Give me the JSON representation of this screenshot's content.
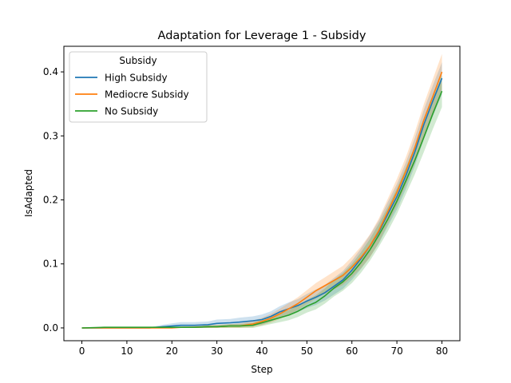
{
  "chart_data": {
    "type": "line",
    "title": "Adaptation for Leverage 1 - Subsidy",
    "xlabel": "Step",
    "ylabel": "IsAdapted",
    "xlim": [
      -4,
      84
    ],
    "ylim": [
      -0.02,
      0.44
    ],
    "xticks": [
      0,
      10,
      20,
      30,
      40,
      50,
      60,
      70,
      80
    ],
    "yticks": [
      0.0,
      0.1,
      0.2,
      0.3,
      0.4
    ],
    "ytick_labels": [
      "0.0",
      "0.1",
      "0.2",
      "0.3",
      "0.4"
    ],
    "grid": false,
    "legend": {
      "title": "Subsidy",
      "placement": "upper-left"
    },
    "x": [
      0,
      5,
      10,
      15,
      18,
      20,
      22,
      25,
      28,
      30,
      33,
      35,
      38,
      40,
      42,
      44,
      46,
      48,
      50,
      52,
      54,
      56,
      58,
      60,
      62,
      64,
      66,
      68,
      70,
      72,
      74,
      76,
      78,
      80
    ],
    "series": [
      {
        "name": "High Subsidy",
        "color": "#1f77b4",
        "values": [
          0.0,
          0.0,
          0.0,
          0.0,
          0.002,
          0.003,
          0.004,
          0.004,
          0.005,
          0.007,
          0.008,
          0.009,
          0.011,
          0.013,
          0.018,
          0.025,
          0.03,
          0.035,
          0.042,
          0.048,
          0.055,
          0.065,
          0.075,
          0.09,
          0.108,
          0.128,
          0.15,
          0.178,
          0.205,
          0.238,
          0.275,
          0.318,
          0.355,
          0.39
        ],
        "band": [
          0.0,
          0.0,
          0.0,
          0.001,
          0.003,
          0.004,
          0.005,
          0.005,
          0.005,
          0.006,
          0.006,
          0.007,
          0.007,
          0.008,
          0.008,
          0.009,
          0.01,
          0.01,
          0.011,
          0.012,
          0.012,
          0.013,
          0.014,
          0.015,
          0.016,
          0.017,
          0.018,
          0.019,
          0.02,
          0.021,
          0.022,
          0.023,
          0.024,
          0.025
        ]
      },
      {
        "name": "Mediocre Subsidy",
        "color": "#ff7f0e",
        "values": [
          0.0,
          0.0,
          0.0,
          0.0,
          0.0,
          0.0,
          0.001,
          0.001,
          0.002,
          0.002,
          0.003,
          0.003,
          0.006,
          0.01,
          0.015,
          0.022,
          0.03,
          0.038,
          0.048,
          0.058,
          0.066,
          0.074,
          0.082,
          0.095,
          0.11,
          0.128,
          0.152,
          0.182,
          0.212,
          0.245,
          0.282,
          0.325,
          0.362,
          0.4
        ],
        "band": [
          0.0,
          0.0,
          0.0,
          0.0,
          0.0,
          0.001,
          0.001,
          0.002,
          0.002,
          0.003,
          0.003,
          0.004,
          0.005,
          0.006,
          0.007,
          0.008,
          0.009,
          0.01,
          0.011,
          0.012,
          0.013,
          0.014,
          0.015,
          0.016,
          0.017,
          0.018,
          0.019,
          0.02,
          0.021,
          0.022,
          0.024,
          0.025,
          0.027,
          0.028
        ]
      },
      {
        "name": "No Subsidy",
        "color": "#2ca02c",
        "values": [
          0.0,
          0.001,
          0.001,
          0.001,
          0.001,
          0.001,
          0.001,
          0.001,
          0.002,
          0.002,
          0.003,
          0.003,
          0.004,
          0.008,
          0.012,
          0.016,
          0.02,
          0.026,
          0.034,
          0.04,
          0.05,
          0.062,
          0.072,
          0.085,
          0.102,
          0.122,
          0.145,
          0.17,
          0.198,
          0.23,
          0.262,
          0.298,
          0.335,
          0.37
        ],
        "band": [
          0.0,
          0.0,
          0.0,
          0.0,
          0.0,
          0.001,
          0.001,
          0.001,
          0.002,
          0.002,
          0.003,
          0.003,
          0.004,
          0.005,
          0.006,
          0.007,
          0.008,
          0.009,
          0.01,
          0.011,
          0.012,
          0.013,
          0.014,
          0.015,
          0.016,
          0.017,
          0.018,
          0.019,
          0.02,
          0.021,
          0.022,
          0.023,
          0.024,
          0.025
        ]
      }
    ]
  }
}
